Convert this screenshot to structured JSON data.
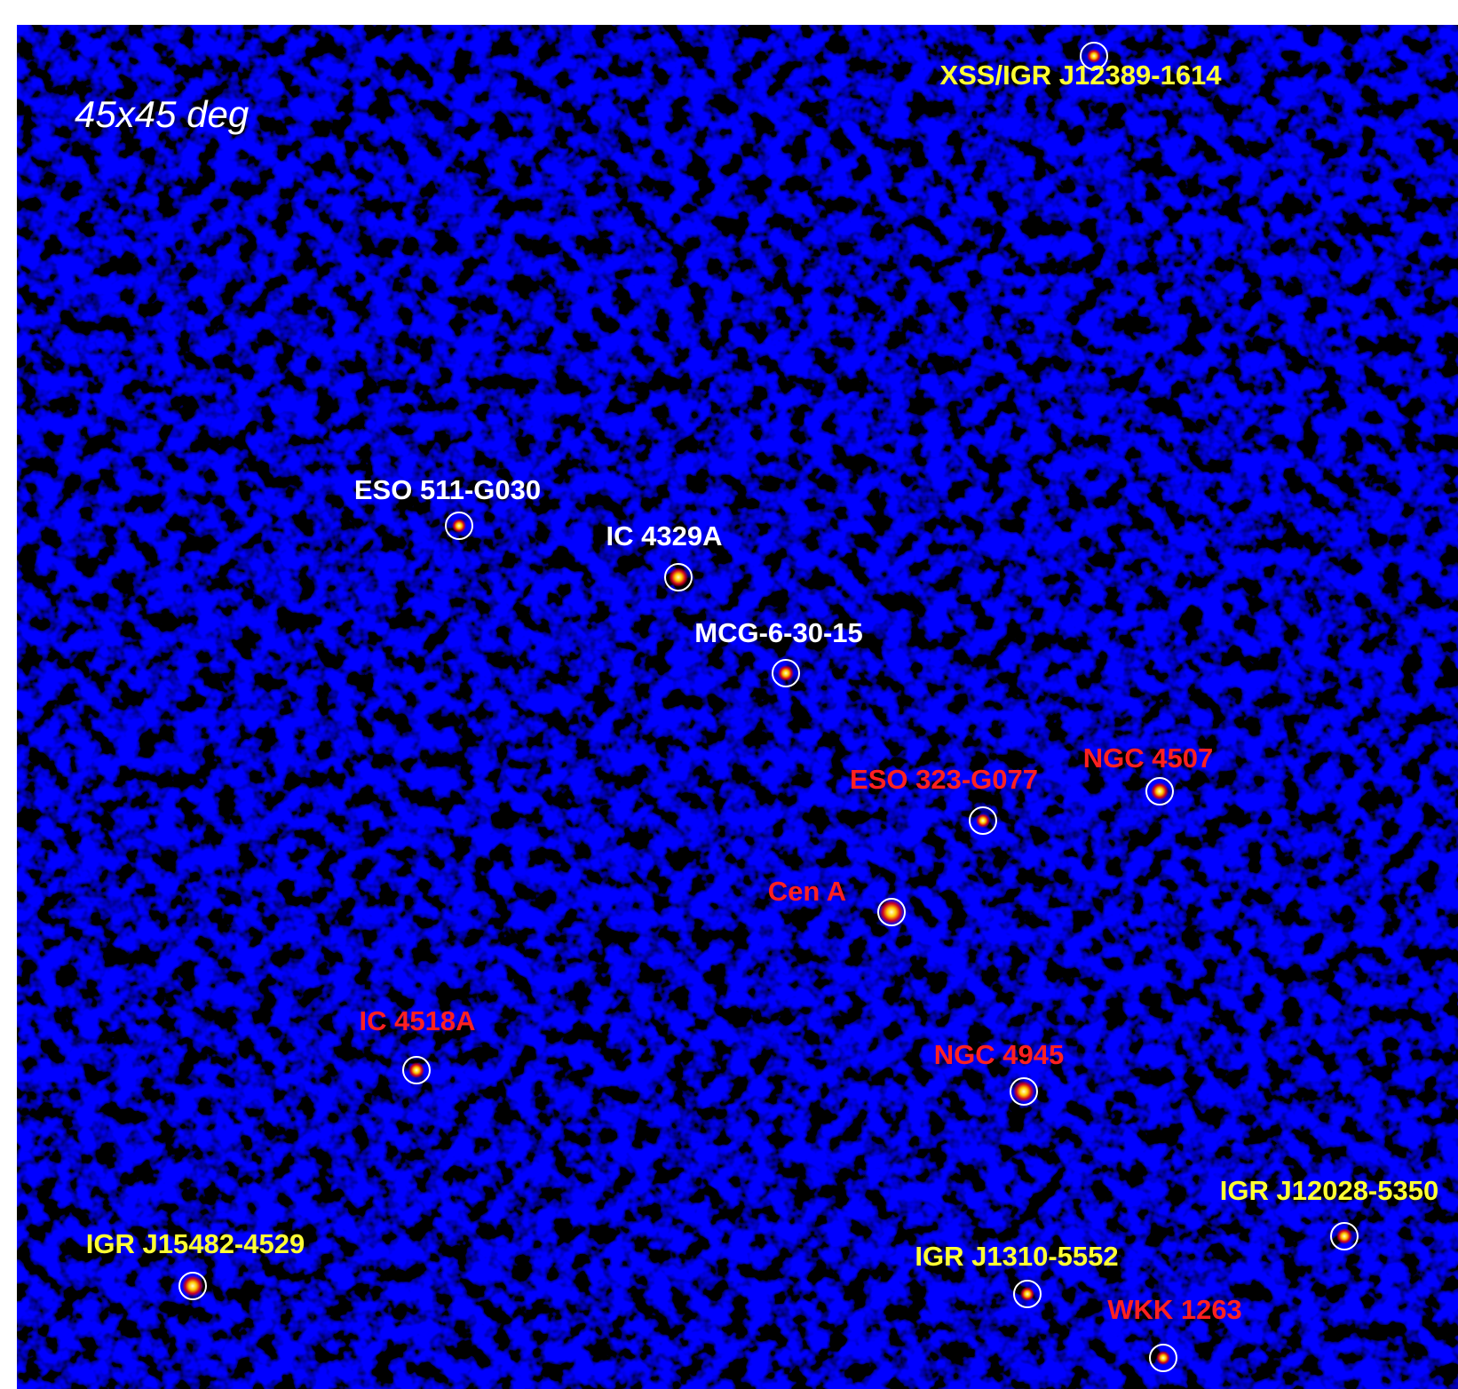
{
  "image": {
    "scale_label": "45x45 deg"
  },
  "sources": [
    {
      "name": "XSS/IGR J12389-1614",
      "color": "#ffff33"
    },
    {
      "name": "ESO 511-G030",
      "color": "#ffffff"
    },
    {
      "name": "IC 4329A",
      "color": "#ffffff"
    },
    {
      "name": "MCG-6-30-15",
      "color": "#ffffff"
    },
    {
      "name": "ESO 323-G077",
      "color": "#ff2020"
    },
    {
      "name": "NGC 4507",
      "color": "#ff2020"
    },
    {
      "name": "Cen A",
      "color": "#ff2020"
    },
    {
      "name": "IC 4518A",
      "color": "#ff2020"
    },
    {
      "name": "NGC 4945",
      "color": "#ff2020"
    },
    {
      "name": "IGR J12028-5350",
      "color": "#ffff33"
    },
    {
      "name": "IGR J15482-4529",
      "color": "#ffff33"
    },
    {
      "name": "IGR J1310-5552",
      "color": "#ffff33"
    },
    {
      "name": "WKK 1263",
      "color": "#ff2020"
    }
  ]
}
